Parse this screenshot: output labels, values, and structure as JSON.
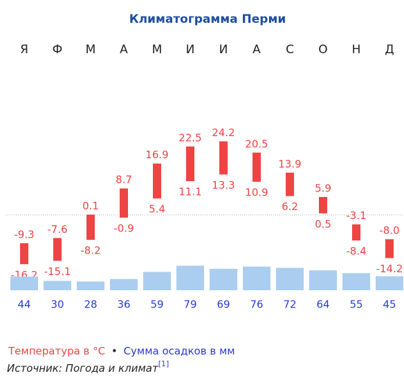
{
  "chart_data": {
    "type": "climate",
    "title": "Климатограмма Перми",
    "categories": [
      "Я",
      "Ф",
      "М",
      "А",
      "М",
      "И",
      "И",
      "А",
      "С",
      "О",
      "Н",
      "Д"
    ],
    "temperature": {
      "name": "Температура в °C",
      "color": "#ee4444",
      "max": [
        -9.3,
        -7.6,
        0.1,
        8.7,
        16.9,
        22.5,
        24.2,
        20.5,
        13.9,
        5.9,
        -3.1,
        -8.0
      ],
      "max_labels": [
        "-9.3",
        "-7.6",
        "0.1",
        "8.7",
        "16.9",
        "22.5",
        "24.2",
        "20.5",
        "13.9",
        "5.9",
        "-3.1",
        "-8.0"
      ],
      "min": [
        -16.2,
        -15.1,
        -8.2,
        -0.9,
        5.4,
        11.1,
        13.3,
        10.9,
        6.2,
        0.5,
        -8.4,
        -14.2
      ]
    },
    "precipitation": {
      "name": "Сумма осадков в мм",
      "color": "#abcdef",
      "values": [
        44,
        30,
        28,
        36,
        59,
        79,
        69,
        76,
        72,
        64,
        55,
        45
      ]
    },
    "legend_separator": "•",
    "source": {
      "text": "Источник: Погода и климат",
      "ref": "[1]"
    }
  }
}
